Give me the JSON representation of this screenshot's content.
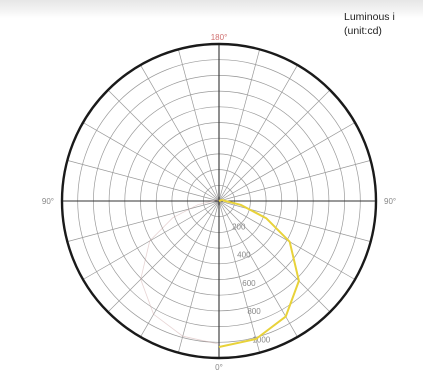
{
  "legend": {
    "title": "Luminous i",
    "unit": "(unit:cd)"
  },
  "colors": {
    "outer_ring": "#1a1a1a",
    "grid": "#9a9a9a",
    "axis": "#333333",
    "curve": "#e8d23a",
    "curve_alt": "#c9a0a0",
    "tick_label": "#888888",
    "top_label": "#d07070"
  },
  "chart_data": {
    "type": "polar",
    "title": "",
    "angle_labels": {
      "top": "180°",
      "left": "90°",
      "right": "90°",
      "bottom": "0°"
    },
    "radial_rings": 10,
    "spoke_step_deg": 15,
    "radial_tick_labels": [
      "200",
      "400",
      "600",
      "800",
      "1000"
    ],
    "series": [
      {
        "name": "",
        "color": "#e8d23a",
        "points": [
          {
            "angle": 0,
            "value": 0.93
          },
          {
            "angle": 15,
            "value": 0.91
          },
          {
            "angle": 30,
            "value": 0.85
          },
          {
            "angle": 45,
            "value": 0.72
          },
          {
            "angle": 60,
            "value": 0.52
          },
          {
            "angle": 70,
            "value": 0.32
          },
          {
            "angle": 80,
            "value": 0.14
          },
          {
            "angle": 90,
            "value": 0.04
          },
          {
            "angle": 110,
            "value": 0.02
          },
          {
            "angle": 180,
            "value": 0.0
          }
        ]
      }
    ]
  }
}
